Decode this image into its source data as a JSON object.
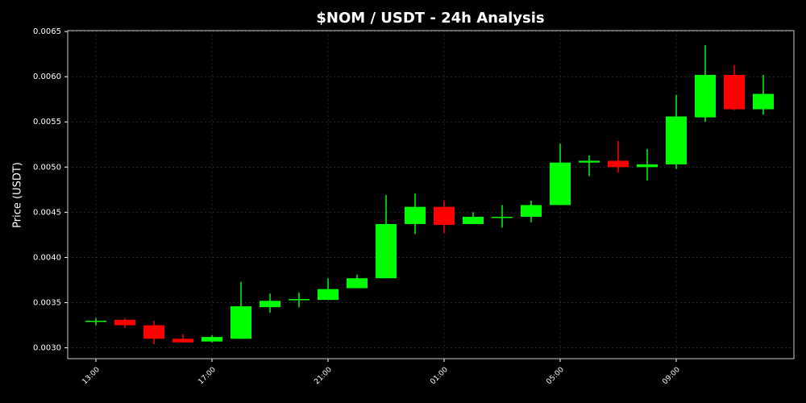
{
  "chart_data": {
    "type": "candlestick",
    "title": "$NOM / USDT - 24h Analysis",
    "y_label": "Price (USDT)",
    "categories": [
      "13:00",
      null,
      null,
      null,
      "17:00",
      null,
      null,
      null,
      "21:00",
      null,
      null,
      null,
      "01:00",
      null,
      null,
      null,
      "05:00",
      null,
      null,
      null,
      "09:00",
      null,
      null,
      null
    ],
    "open": [
      0.00329,
      0.00331,
      0.00325,
      0.0031,
      0.00307,
      0.0031,
      0.00345,
      0.00353,
      0.00353,
      0.00366,
      0.00377,
      0.00437,
      0.00456,
      0.00437,
      0.00444,
      0.00445,
      0.00458,
      0.00505,
      0.00507,
      0.005,
      0.00503,
      0.00555,
      0.00602,
      0.00564
    ],
    "high": [
      0.00333,
      0.00333,
      0.0033,
      0.00315,
      0.00314,
      0.00373,
      0.0036,
      0.00361,
      0.00377,
      0.00381,
      0.00469,
      0.00471,
      0.00463,
      0.0045,
      0.00458,
      0.00463,
      0.00526,
      0.00513,
      0.00529,
      0.0052,
      0.0058,
      0.00635,
      0.00613,
      0.00602
    ],
    "low": [
      0.00325,
      0.00322,
      0.00304,
      0.00306,
      0.00306,
      0.0031,
      0.00339,
      0.00345,
      0.00353,
      0.00366,
      0.00377,
      0.00426,
      0.00427,
      0.00437,
      0.00433,
      0.00439,
      0.00458,
      0.0049,
      0.00494,
      0.00485,
      0.00498,
      0.0055,
      0.00563,
      0.00558
    ],
    "close": [
      0.0033,
      0.00325,
      0.0031,
      0.00306,
      0.00312,
      0.00346,
      0.00352,
      0.00354,
      0.00365,
      0.00377,
      0.00437,
      0.00456,
      0.00436,
      0.00445,
      0.00445,
      0.00458,
      0.00505,
      0.00507,
      0.005,
      0.00503,
      0.00556,
      0.00602,
      0.00564,
      0.00581
    ],
    "up_color": "#00ff00",
    "down_color": "#ff0000",
    "ylim": [
      0.00288,
      0.00651
    ],
    "yticks": [
      {
        "value": 0.003,
        "label": "0.0030"
      },
      {
        "value": 0.0035,
        "label": "0.0035"
      },
      {
        "value": 0.004,
        "label": "0.0040"
      },
      {
        "value": 0.0045,
        "label": "0.0045"
      },
      {
        "value": 0.005,
        "label": "0.0050"
      },
      {
        "value": 0.0055,
        "label": "0.0055"
      },
      {
        "value": 0.006,
        "label": "0.0060"
      },
      {
        "value": 0.0065,
        "label": "0.0065"
      }
    ],
    "grid": true
  }
}
